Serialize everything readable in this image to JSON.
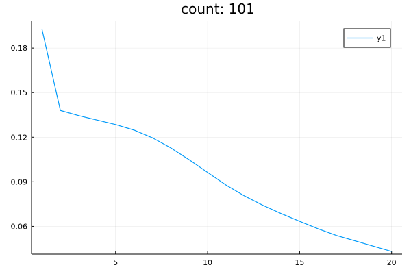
{
  "chart_data": {
    "type": "line",
    "title": "count: 101",
    "xlabel": "",
    "ylabel": "",
    "xlim": [
      0.43,
      20.57
    ],
    "ylim": [
      0.0413,
      0.1985
    ],
    "xticks": [
      5,
      10,
      15,
      20
    ],
    "xtick_labels": [
      "5",
      "10",
      "15",
      "20"
    ],
    "yticks": [
      0.06,
      0.09,
      0.12,
      0.15,
      0.18
    ],
    "ytick_labels": [
      "0.06",
      "0.09",
      "0.12",
      "0.15",
      "0.18"
    ],
    "grid": true,
    "legend_position": "top-right",
    "series": [
      {
        "name": "y1",
        "color": "#009af9",
        "x": [
          1,
          2,
          3,
          4,
          5,
          6,
          7,
          8,
          9,
          10,
          11,
          12,
          13,
          14,
          15,
          16,
          17,
          20
        ],
        "y": [
          0.1926,
          0.138,
          0.1345,
          0.1315,
          0.1285,
          0.1248,
          0.1196,
          0.1128,
          0.1048,
          0.0963,
          0.0878,
          0.0805,
          0.0742,
          0.0686,
          0.0634,
          0.0584,
          0.0539,
          0.0431
        ]
      }
    ]
  }
}
